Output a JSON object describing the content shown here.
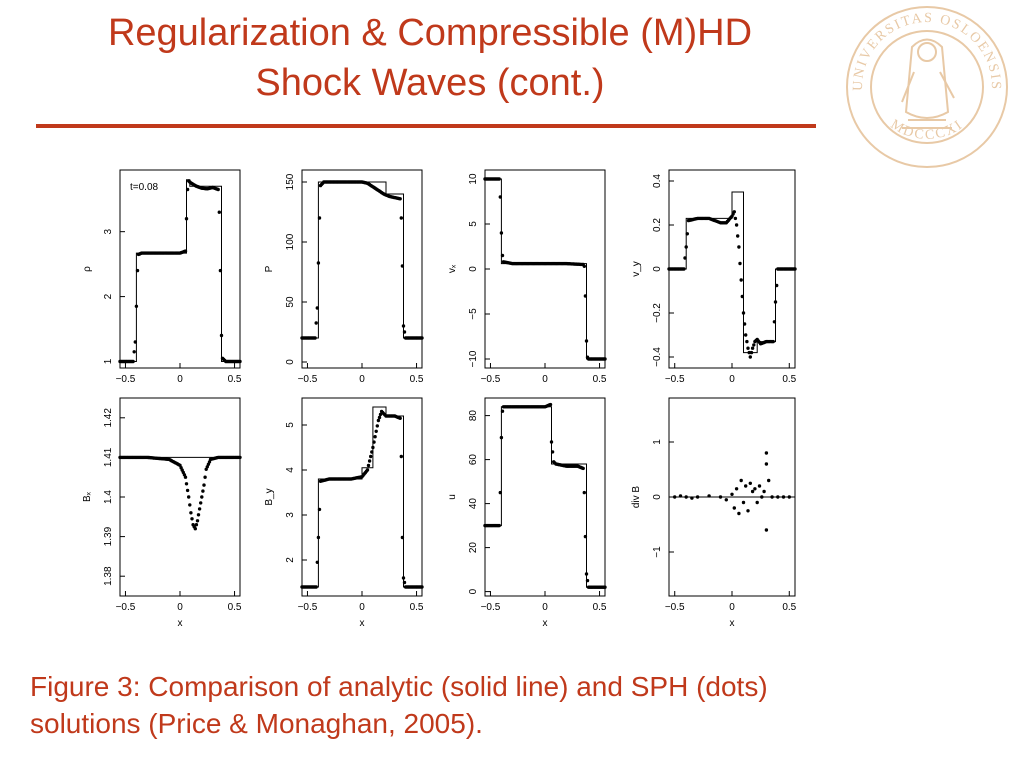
{
  "title": {
    "line1": "Regularization & Compressible (M)HD",
    "line2": "Shock Waves (cont.)"
  },
  "caption": {
    "line1": "Figure 3: Comparison of analytic (solid line) and SPH (dots)",
    "line2": "solutions (Price & Monaghan, 2005)."
  },
  "seal": {
    "icon": "university-seal-icon",
    "text_top": "UNIVERSITAS OSLOENSIS",
    "text_bottom": "MDCCCXI"
  },
  "colors": {
    "accent": "#c0391b",
    "seal": "#e8c9a6",
    "ink": "#000000"
  },
  "chart_data": [
    {
      "type": "line",
      "ylabel": "ρ",
      "xlabel": "",
      "annotation": "t=0.08",
      "xlim": [
        -0.55,
        0.55
      ],
      "ylim": [
        0.9,
        3.95
      ],
      "xticks": [
        -0.5,
        0,
        0.5
      ],
      "xtick_labels": [
        "−0.5",
        "0",
        "0.5"
      ],
      "yticks": [
        1,
        2,
        3
      ],
      "ytick_labels": [
        "1",
        "2",
        "3"
      ],
      "series": [
        {
          "kind": "analytic",
          "x": [
            -0.55,
            -0.4,
            -0.4,
            0.06,
            0.06,
            0.09,
            0.09,
            0.38,
            0.38,
            0.55
          ],
          "y": [
            1,
            1,
            2.67,
            2.67,
            3.8,
            3.8,
            3.7,
            3.7,
            1,
            1
          ]
        },
        {
          "kind": "sph",
          "x": [
            -0.55,
            -0.43,
            -0.41,
            -0.39,
            -0.38,
            -0.35,
            -0.2,
            0,
            0.05,
            0.06,
            0.07,
            0.08,
            0.1,
            0.15,
            0.2,
            0.25,
            0.3,
            0.35,
            0.36,
            0.37,
            0.38,
            0.39,
            0.42,
            0.55
          ],
          "y": [
            1,
            1,
            1.3,
            2.4,
            2.65,
            2.67,
            2.67,
            2.67,
            2.7,
            3.2,
            3.65,
            3.78,
            3.75,
            3.7,
            3.67,
            3.66,
            3.68,
            3.65,
            3.3,
            2.4,
            1.4,
            1.05,
            1,
            1
          ]
        }
      ]
    },
    {
      "type": "line",
      "ylabel": "P",
      "xlabel": "",
      "xlim": [
        -0.55,
        0.55
      ],
      "ylim": [
        -5,
        160
      ],
      "xticks": [
        -0.5,
        0,
        0.5
      ],
      "xtick_labels": [
        "−0.5",
        "0",
        "0.5"
      ],
      "yticks": [
        0,
        50,
        100,
        150
      ],
      "ytick_labels": [
        "0",
        "50",
        "100",
        "150"
      ],
      "series": [
        {
          "kind": "analytic",
          "x": [
            -0.55,
            -0.4,
            -0.4,
            0.06,
            0.06,
            0.22,
            0.22,
            0.38,
            0.38,
            0.55
          ],
          "y": [
            20,
            20,
            150,
            150,
            150,
            150,
            140,
            140,
            20,
            20
          ]
        },
        {
          "kind": "sph",
          "x": [
            -0.55,
            -0.43,
            -0.41,
            -0.39,
            -0.38,
            -0.35,
            -0.2,
            0,
            0.05,
            0.1,
            0.15,
            0.2,
            0.25,
            0.3,
            0.35,
            0.36,
            0.37,
            0.38,
            0.4,
            0.55
          ],
          "y": [
            20,
            20,
            45,
            120,
            147,
            150,
            150,
            150,
            149,
            146,
            143,
            140,
            138,
            137,
            136,
            120,
            80,
            30,
            20,
            20
          ]
        }
      ]
    },
    {
      "type": "line",
      "ylabel": "vₓ",
      "xlabel": "",
      "xlim": [
        -0.55,
        0.55
      ],
      "ylim": [
        -11,
        11
      ],
      "xticks": [
        -0.5,
        0,
        0.5
      ],
      "xtick_labels": [
        "−0.5",
        "0",
        "0.5"
      ],
      "yticks": [
        -10,
        -5,
        0,
        5,
        10
      ],
      "ytick_labels": [
        "−10",
        "−5",
        "0",
        "5",
        "10"
      ],
      "series": [
        {
          "kind": "analytic",
          "x": [
            -0.55,
            -0.4,
            -0.4,
            0.38,
            0.38,
            0.55
          ],
          "y": [
            10,
            10,
            0.6,
            0.6,
            -10,
            -10
          ]
        },
        {
          "kind": "sph",
          "x": [
            -0.55,
            -0.42,
            -0.41,
            -0.4,
            -0.39,
            -0.38,
            -0.3,
            0,
            0.2,
            0.35,
            0.36,
            0.37,
            0.38,
            0.39,
            0.4,
            0.55
          ],
          "y": [
            10,
            10,
            8,
            4,
            1.5,
            0.8,
            0.6,
            0.6,
            0.6,
            0.5,
            0.3,
            -3,
            -8,
            -9.8,
            -10,
            -10
          ]
        }
      ]
    },
    {
      "type": "line",
      "ylabel": "v_y",
      "xlabel": "",
      "xlim": [
        -0.55,
        0.55
      ],
      "ylim": [
        -0.45,
        0.45
      ],
      "xticks": [
        -0.5,
        0,
        0.5
      ],
      "xtick_labels": [
        "−0.5",
        "0",
        "0.5"
      ],
      "yticks": [
        -0.4,
        -0.2,
        0,
        0.2,
        0.4
      ],
      "ytick_labels": [
        "−0.4",
        "−0.2",
        "0",
        "0.2",
        "0.4"
      ],
      "series": [
        {
          "kind": "analytic",
          "x": [
            -0.55,
            -0.4,
            -0.4,
            0,
            0,
            0.1,
            0.1,
            0.22,
            0.22,
            0.38,
            0.38,
            0.55
          ],
          "y": [
            0,
            0,
            0.23,
            0.23,
            0.35,
            0.35,
            -0.38,
            -0.38,
            -0.33,
            -0.33,
            0,
            0
          ]
        },
        {
          "kind": "sph",
          "x": [
            -0.55,
            -0.42,
            -0.4,
            -0.38,
            -0.3,
            -0.2,
            -0.1,
            -0.05,
            0,
            0.02,
            0.04,
            0.06,
            0.08,
            0.1,
            0.12,
            0.14,
            0.16,
            0.18,
            0.2,
            0.22,
            0.25,
            0.3,
            0.36,
            0.38,
            0.4,
            0.55
          ],
          "y": [
            0,
            0,
            0.1,
            0.22,
            0.23,
            0.23,
            0.21,
            0.21,
            0.24,
            0.26,
            0.2,
            0.1,
            -0.05,
            -0.2,
            -0.3,
            -0.36,
            -0.4,
            -0.36,
            -0.33,
            -0.32,
            -0.34,
            -0.33,
            -0.33,
            -0.15,
            0,
            0
          ]
        }
      ]
    },
    {
      "type": "line",
      "ylabel": "Bₓ",
      "xlabel": "x",
      "xlim": [
        -0.55,
        0.55
      ],
      "ylim": [
        1.375,
        1.425
      ],
      "xticks": [
        -0.5,
        0,
        0.5
      ],
      "xtick_labels": [
        "−0.5",
        "0",
        "0.5"
      ],
      "yticks": [
        1.38,
        1.39,
        1.4,
        1.41,
        1.42
      ],
      "ytick_labels": [
        "1.38",
        "1.39",
        "1.4",
        "1.41",
        "1.42"
      ],
      "series": [
        {
          "kind": "analytic",
          "x": [
            -0.55,
            0.55
          ],
          "y": [
            1.41,
            1.41
          ]
        },
        {
          "kind": "sph",
          "x": [
            -0.55,
            -0.3,
            -0.1,
            0,
            0.05,
            0.08,
            0.1,
            0.12,
            0.14,
            0.16,
            0.18,
            0.2,
            0.22,
            0.24,
            0.28,
            0.35,
            0.55
          ],
          "y": [
            1.41,
            1.41,
            1.4095,
            1.408,
            1.405,
            1.4,
            1.396,
            1.393,
            1.392,
            1.394,
            1.397,
            1.4,
            1.403,
            1.407,
            1.4095,
            1.41,
            1.41
          ]
        }
      ]
    },
    {
      "type": "line",
      "ylabel": "B_y",
      "xlabel": "x",
      "xlim": [
        -0.55,
        0.55
      ],
      "ylim": [
        1.2,
        5.6
      ],
      "xticks": [
        -0.5,
        0,
        0.5
      ],
      "xtick_labels": [
        "−0.5",
        "0",
        "0.5"
      ],
      "yticks": [
        2,
        3,
        4,
        5
      ],
      "ytick_labels": [
        "2",
        "3",
        "4",
        "5"
      ],
      "series": [
        {
          "kind": "analytic",
          "x": [
            -0.55,
            -0.4,
            -0.4,
            0,
            0,
            0.1,
            0.1,
            0.22,
            0.22,
            0.38,
            0.38,
            0.55
          ],
          "y": [
            1.4,
            1.4,
            3.8,
            3.8,
            4.05,
            4.05,
            5.4,
            5.4,
            5.2,
            5.2,
            1.4,
            1.4
          ]
        },
        {
          "kind": "sph",
          "x": [
            -0.55,
            -0.42,
            -0.4,
            -0.38,
            -0.3,
            -0.1,
            0,
            0.05,
            0.1,
            0.15,
            0.18,
            0.22,
            0.3,
            0.35,
            0.36,
            0.37,
            0.38,
            0.4,
            0.55
          ],
          "y": [
            1.4,
            1.4,
            2.5,
            3.75,
            3.8,
            3.8,
            3.85,
            4.0,
            4.5,
            5.1,
            5.3,
            5.2,
            5.2,
            5.15,
            4.3,
            2.5,
            1.6,
            1.4,
            1.4
          ]
        }
      ]
    },
    {
      "type": "line",
      "ylabel": "u",
      "xlabel": "x",
      "xlim": [
        -0.55,
        0.55
      ],
      "ylim": [
        -2,
        88
      ],
      "xticks": [
        -0.5,
        0,
        0.5
      ],
      "xtick_labels": [
        "−0.5",
        "0",
        "0.5"
      ],
      "yticks": [
        0,
        20,
        40,
        60,
        80
      ],
      "ytick_labels": [
        "0",
        "20",
        "40",
        "60",
        "80"
      ],
      "series": [
        {
          "kind": "analytic",
          "x": [
            -0.55,
            -0.4,
            -0.4,
            0.06,
            0.06,
            0.38,
            0.38,
            0.55
          ],
          "y": [
            30,
            30,
            84,
            84,
            58,
            58,
            2,
            2
          ]
        },
        {
          "kind": "sph",
          "x": [
            -0.55,
            -0.42,
            -0.41,
            -0.4,
            -0.39,
            -0.38,
            -0.3,
            0,
            0.05,
            0.06,
            0.08,
            0.1,
            0.2,
            0.3,
            0.35,
            0.36,
            0.37,
            0.38,
            0.4,
            0.55
          ],
          "y": [
            30,
            30,
            45,
            70,
            82,
            84,
            84,
            84,
            85,
            68,
            59,
            58,
            57,
            57,
            56,
            45,
            25,
            8,
            2,
            2
          ]
        }
      ]
    },
    {
      "type": "scatter",
      "ylabel": "div B",
      "xlabel": "x",
      "xlim": [
        -0.55,
        0.55
      ],
      "ylim": [
        -1.8,
        1.8
      ],
      "xticks": [
        -0.5,
        0,
        0.5
      ],
      "xtick_labels": [
        "−0.5",
        "0",
        "0.5"
      ],
      "yticks": [
        -1,
        0,
        1
      ],
      "ytick_labels": [
        "−1",
        "0",
        "1"
      ],
      "series": [
        {
          "kind": "analytic",
          "x": [
            -0.55,
            0.55
          ],
          "y": [
            0,
            0
          ]
        },
        {
          "kind": "sph",
          "x": [
            -0.5,
            -0.45,
            -0.4,
            -0.35,
            -0.3,
            -0.2,
            -0.1,
            -0.05,
            0,
            0.02,
            0.04,
            0.06,
            0.08,
            0.1,
            0.12,
            0.14,
            0.16,
            0.18,
            0.2,
            0.22,
            0.24,
            0.26,
            0.28,
            0.3,
            0.3,
            0.3,
            0.32,
            0.35,
            0.4,
            0.45,
            0.5
          ],
          "y": [
            0,
            0.02,
            0,
            -0.02,
            0,
            0.02,
            0,
            -0.05,
            0.05,
            -0.2,
            0.15,
            -0.3,
            0.3,
            -0.1,
            0.2,
            -0.25,
            0.25,
            0.1,
            0.15,
            -0.1,
            0.2,
            0,
            0.1,
            0.6,
            -0.6,
            0.8,
            0.3,
            0,
            0,
            0,
            0
          ]
        }
      ]
    }
  ]
}
